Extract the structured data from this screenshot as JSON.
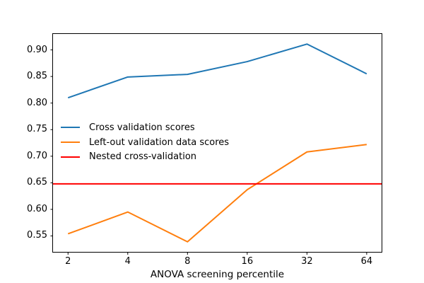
{
  "figure": {
    "background": "#ffffff",
    "spine_color": "#000000"
  },
  "chart_data": {
    "type": "line",
    "title": "",
    "xlabel": "ANOVA screening percentile",
    "ylabel": "",
    "x_scale": "log2",
    "x": [
      2,
      4,
      8,
      16,
      32,
      64
    ],
    "x_tick_labels": [
      "2",
      "4",
      "8",
      "16",
      "32",
      "64"
    ],
    "y_ticks": [
      0.55,
      0.6,
      0.65,
      0.7,
      0.75,
      0.8,
      0.85,
      0.9
    ],
    "y_tick_labels": [
      "0.55",
      "0.60",
      "0.65",
      "0.70",
      "0.75",
      "0.80",
      "0.85",
      "0.90"
    ],
    "xlim": [
      1.68,
      76.1
    ],
    "ylim": [
      0.52,
      0.93
    ],
    "grid": false,
    "legend_position": "center-left",
    "legend_frame": false,
    "series": [
      {
        "key": "cv-scores",
        "name": "Cross validation scores",
        "color": "#1f77b4",
        "values": [
          0.81,
          0.849,
          0.854,
          0.878,
          0.911,
          0.855
        ]
      },
      {
        "key": "left-out-scores",
        "name": "Left-out validation data scores",
        "color": "#ff7f0e",
        "values": [
          0.554,
          0.595,
          0.539,
          0.637,
          0.708,
          0.722
        ]
      },
      {
        "key": "nested-cv",
        "name": "Nested cross-validation",
        "color": "#ff0000",
        "constant": 0.648
      }
    ]
  }
}
